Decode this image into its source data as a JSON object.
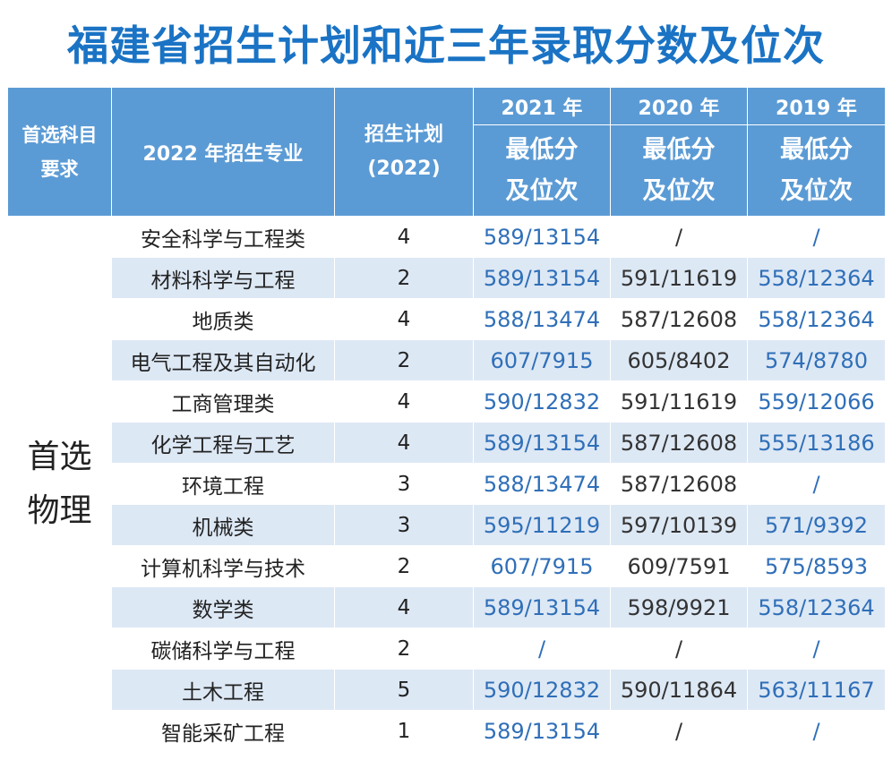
{
  "title": "福建省招生计划和近三年录取分数及位次",
  "header": {
    "subject_req": [
      "首选科目",
      "要求"
    ],
    "major": "2022 年招生专业",
    "plan": [
      "招生计划",
      "(2022)"
    ],
    "years": [
      "2021 年",
      "2020 年",
      "2019 年"
    ],
    "score_label": [
      "最低分",
      "及位次"
    ]
  },
  "subject_group": [
    "首选",
    "物理"
  ],
  "rows": [
    {
      "major": "安全科学与工程类",
      "plan": "4",
      "s2021": "589/13154",
      "s2020": "/",
      "s2019": "/"
    },
    {
      "major": "材料科学与工程",
      "plan": "2",
      "s2021": "589/13154",
      "s2020": "591/11619",
      "s2019": "558/12364"
    },
    {
      "major": "地质类",
      "plan": "4",
      "s2021": "588/13474",
      "s2020": "587/12608",
      "s2019": "558/12364"
    },
    {
      "major": "电气工程及其自动化",
      "plan": "2",
      "s2021": "607/7915",
      "s2020": "605/8402",
      "s2019": "574/8780"
    },
    {
      "major": "工商管理类",
      "plan": "4",
      "s2021": "590/12832",
      "s2020": "591/11619",
      "s2019": "559/12066"
    },
    {
      "major": "化学工程与工艺",
      "plan": "4",
      "s2021": "589/13154",
      "s2020": "587/12608",
      "s2019": "555/13186"
    },
    {
      "major": "环境工程",
      "plan": "3",
      "s2021": "588/13474",
      "s2020": "587/12608",
      "s2019": "/"
    },
    {
      "major": "机械类",
      "plan": "3",
      "s2021": "595/11219",
      "s2020": "597/10139",
      "s2019": "571/9392"
    },
    {
      "major": "计算机科学与技术",
      "plan": "2",
      "s2021": "607/7915",
      "s2020": "609/7591",
      "s2019": "575/8593"
    },
    {
      "major": "数学类",
      "plan": "4",
      "s2021": "589/13154",
      "s2020": "598/9921",
      "s2019": "558/12364"
    },
    {
      "major": "碳储科学与工程",
      "plan": "2",
      "s2021": "/",
      "s2020": "/",
      "s2019": "/"
    },
    {
      "major": "土木工程",
      "plan": "5",
      "s2021": "590/12832",
      "s2020": "590/11864",
      "s2019": "563/11167"
    },
    {
      "major": "智能采矿工程",
      "plan": "1",
      "s2021": "589/13154",
      "s2020": "/",
      "s2019": "/"
    }
  ]
}
